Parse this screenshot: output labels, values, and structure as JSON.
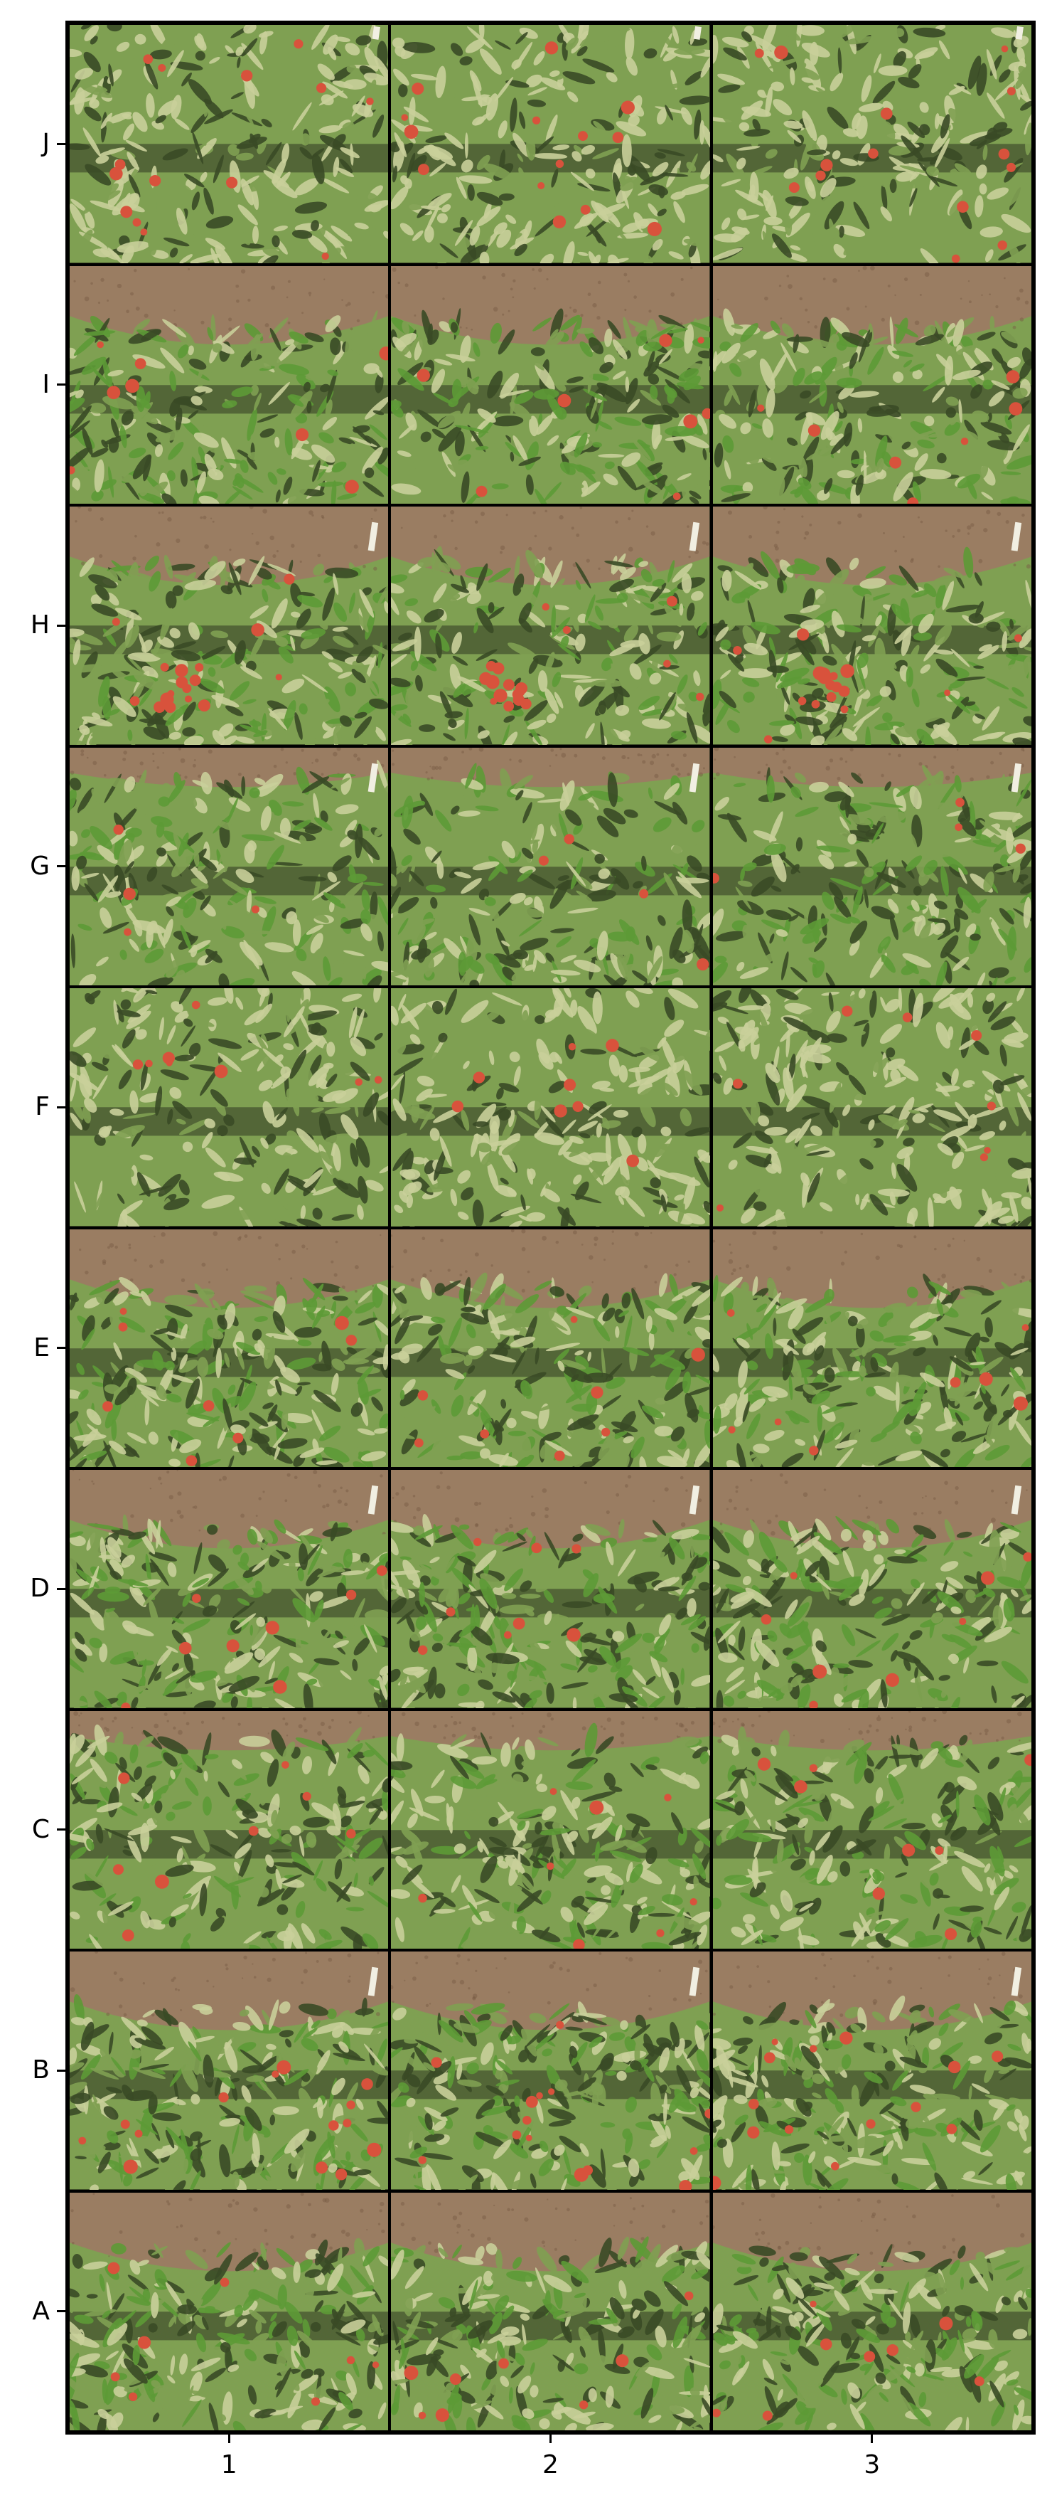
{
  "grid": {
    "rows": [
      "J",
      "I",
      "H",
      "G",
      "F",
      "E",
      "D",
      "C",
      "B",
      "A"
    ],
    "columns": [
      "1",
      "2",
      "3"
    ]
  },
  "tiles": [
    {
      "row": "J",
      "soil": "none",
      "fruit": "many",
      "foliage": "light",
      "marker": true
    },
    {
      "row": "I",
      "soil": "top",
      "fruit": "some",
      "foliage": "bright",
      "marker": false
    },
    {
      "row": "H",
      "soil": "top",
      "fruit": "cluster",
      "foliage": "mixed",
      "marker": true
    },
    {
      "row": "G",
      "soil": "top-thin",
      "fruit": "few",
      "foliage": "bright",
      "marker": true
    },
    {
      "row": "F",
      "soil": "none",
      "fruit": "some",
      "foliage": "light",
      "marker": false
    },
    {
      "row": "E",
      "soil": "top",
      "fruit": "some",
      "foliage": "mixed",
      "marker": false
    },
    {
      "row": "D",
      "soil": "top",
      "fruit": "some",
      "foliage": "bright",
      "marker": true
    },
    {
      "row": "C",
      "soil": "top-thin",
      "fruit": "some",
      "foliage": "bright",
      "marker": false
    },
    {
      "row": "B",
      "soil": "top",
      "fruit": "many",
      "foliage": "mixed",
      "marker": true
    },
    {
      "row": "A",
      "soil": "top",
      "fruit": "some",
      "foliage": "mixed",
      "marker": false
    }
  ],
  "colors": {
    "soil": "#9a7d62",
    "soil_dark": "#7a5e45",
    "leaf_light": "#c9cf9a",
    "leaf_mid": "#7fa052",
    "leaf_bright": "#5d9a36",
    "leaf_dark": "#3a4a26",
    "shadow": "#2f3620",
    "fruit": "#d8523c",
    "marker": "#f1efe2"
  }
}
